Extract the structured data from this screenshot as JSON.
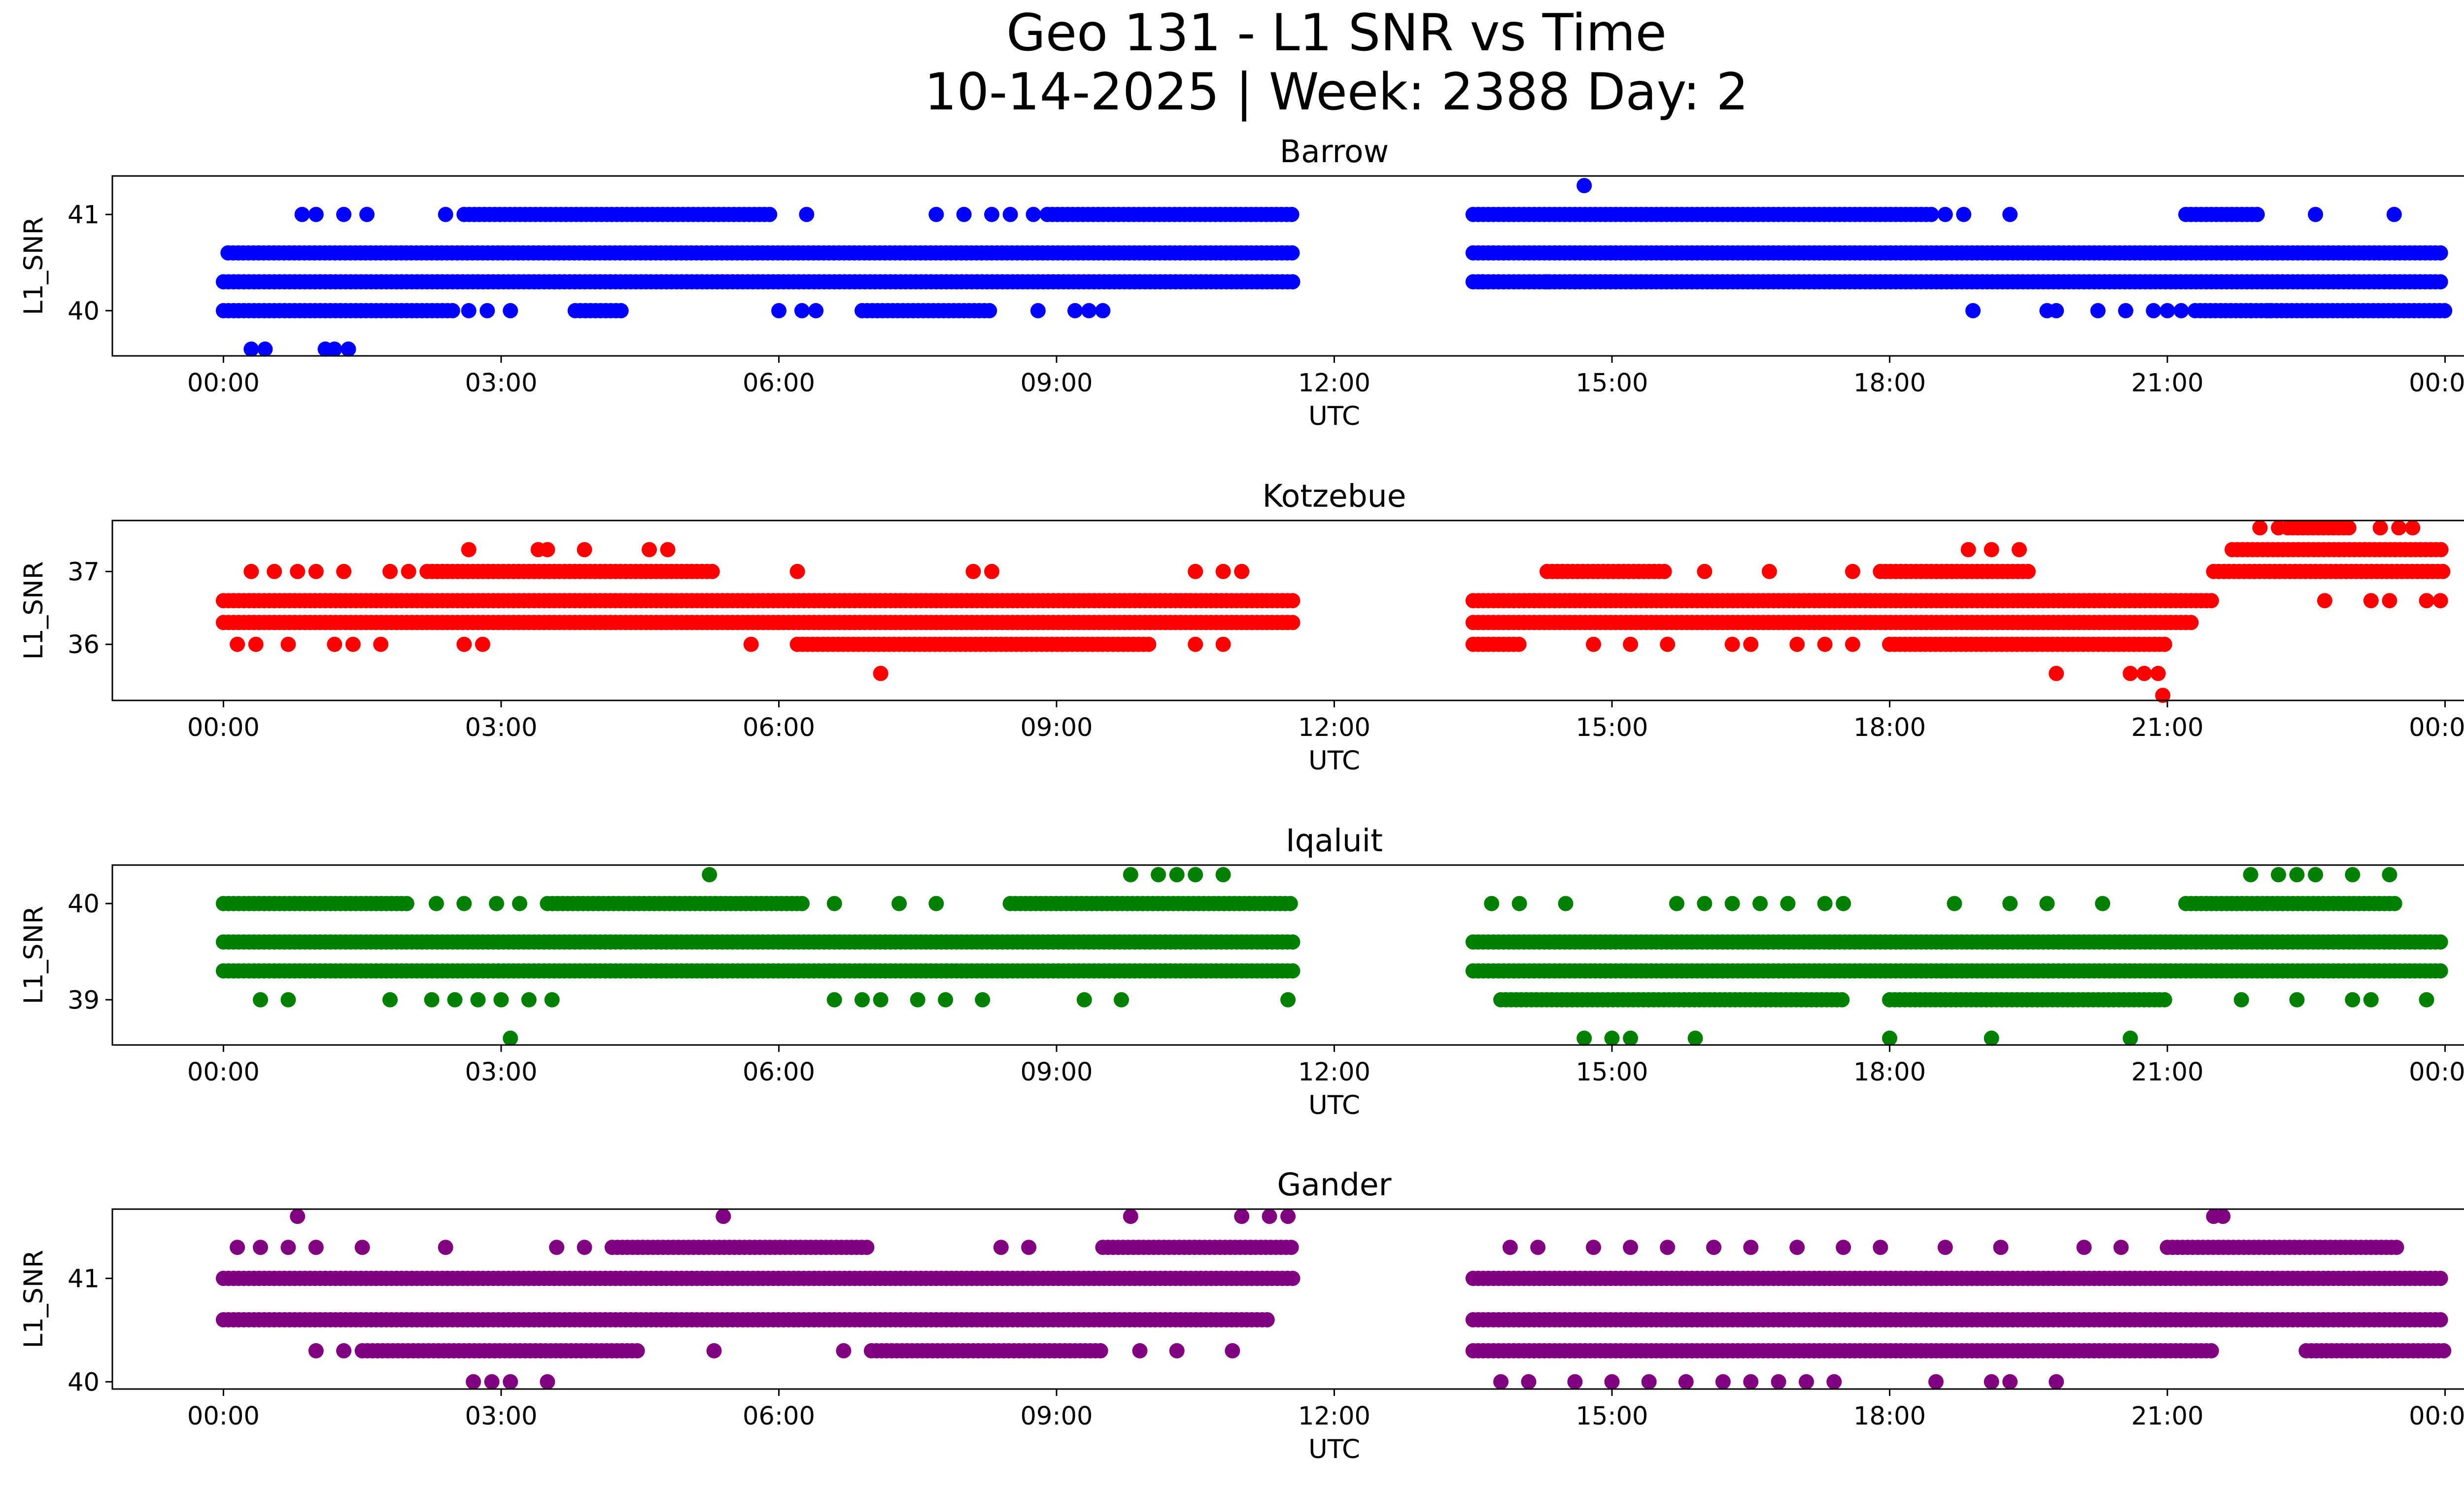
{
  "title_line1": "Geo 131 - L1 SNR vs Time",
  "title_line2": "10-14-2025 | Week: 2388 Day: 2",
  "chart_data": [
    {
      "type": "scatter",
      "title": "Barrow",
      "xlabel": "UTC",
      "ylabel": "L1_SNR",
      "color": "#0000ff",
      "x_ticks": [
        "00:00",
        "03:00",
        "06:00",
        "09:00",
        "12:00",
        "15:00",
        "18:00",
        "21:00",
        "00:00"
      ],
      "xlim_hours": [
        -1.2,
        25.2
      ],
      "y_ticks": [
        "40",
        "41"
      ],
      "y_tick_values": [
        40,
        41
      ],
      "ylim": [
        39.53,
        41.4
      ],
      "coverage_hours": [
        [
          0.0,
          11.55
        ],
        [
          13.5,
          24.0
        ]
      ],
      "dense_levels": [
        {
          "y": 40.6,
          "spans": [
            [
              0.05,
              11.55
            ],
            [
              13.5,
              24.0
            ]
          ]
        },
        {
          "y": 40.3,
          "spans": [
            [
              0.0,
              11.55
            ],
            [
              13.5,
              24.0
            ]
          ]
        },
        {
          "y": 40.0,
          "spans": [
            [
              0.0,
              2.5
            ],
            [
              3.8,
              4.3
            ],
            [
              6.9,
              8.3
            ],
            [
              21.3,
              24.0
            ]
          ]
        },
        {
          "y": 41.0,
          "spans": [
            [
              2.6,
              5.9
            ],
            [
              8.9,
              11.55
            ],
            [
              13.5,
              18.5
            ],
            [
              21.2,
              22.0
            ]
          ]
        }
      ],
      "sparse_points": [
        [
          0.3,
          39.6
        ],
        [
          0.45,
          39.6
        ],
        [
          1.1,
          39.6
        ],
        [
          1.2,
          39.6
        ],
        [
          1.35,
          39.6
        ],
        [
          0.85,
          41.0
        ],
        [
          1.0,
          41.0
        ],
        [
          1.3,
          41.0
        ],
        [
          1.55,
          41.0
        ],
        [
          2.4,
          41.0
        ],
        [
          6.3,
          41.0
        ],
        [
          7.7,
          41.0
        ],
        [
          8.0,
          41.0
        ],
        [
          8.3,
          41.0
        ],
        [
          8.5,
          41.0
        ],
        [
          8.75,
          41.0
        ],
        [
          2.65,
          40.0
        ],
        [
          2.85,
          40.0
        ],
        [
          3.1,
          40.0
        ],
        [
          6.0,
          40.0
        ],
        [
          6.25,
          40.0
        ],
        [
          6.4,
          40.0
        ],
        [
          8.8,
          40.0
        ],
        [
          9.2,
          40.0
        ],
        [
          9.35,
          40.0
        ],
        [
          9.5,
          40.0
        ],
        [
          14.7,
          41.3
        ],
        [
          18.6,
          41.0
        ],
        [
          18.8,
          41.0
        ],
        [
          19.3,
          41.0
        ],
        [
          22.6,
          41.0
        ],
        [
          23.45,
          41.0
        ],
        [
          18.9,
          40.0
        ],
        [
          19.7,
          40.0
        ],
        [
          19.8,
          40.0
        ],
        [
          20.25,
          40.0
        ],
        [
          20.55,
          40.0
        ],
        [
          20.85,
          40.0
        ],
        [
          21.0,
          40.0
        ],
        [
          21.15,
          40.0
        ],
        [
          21.9,
          40.0
        ],
        [
          22.1,
          40.0
        ],
        [
          13.6,
          40.3
        ],
        [
          14.3,
          40.3
        ],
        [
          14.6,
          40.3
        ]
      ]
    },
    {
      "type": "scatter",
      "title": "Kotzebue",
      "xlabel": "UTC",
      "ylabel": "L1_SNR",
      "color": "#ff0000",
      "x_ticks": [
        "00:00",
        "03:00",
        "06:00",
        "09:00",
        "12:00",
        "15:00",
        "18:00",
        "21:00",
        "00:00"
      ],
      "xlim_hours": [
        -1.2,
        25.2
      ],
      "y_ticks": [
        "36",
        "37"
      ],
      "y_tick_values": [
        36,
        37
      ],
      "ylim": [
        35.23,
        37.7
      ],
      "coverage_hours": [
        [
          0.0,
          11.55
        ],
        [
          13.5,
          24.0
        ]
      ],
      "dense_levels": [
        {
          "y": 36.6,
          "spans": [
            [
              0.0,
              11.55
            ],
            [
              13.5,
              21.5
            ]
          ]
        },
        {
          "y": 36.3,
          "spans": [
            [
              0.0,
              11.55
            ],
            [
              13.5,
              21.3
            ]
          ]
        },
        {
          "y": 36.0,
          "spans": [
            [
              6.2,
              10.0
            ],
            [
              13.5,
              14.0
            ],
            [
              18.0,
              21.0
            ]
          ]
        },
        {
          "y": 37.0,
          "spans": [
            [
              2.2,
              5.3
            ],
            [
              14.3,
              15.6
            ],
            [
              17.9,
              19.5
            ],
            [
              21.5,
              24.0
            ]
          ]
        },
        {
          "y": 37.3,
          "spans": [
            [
              21.7,
              24.0
            ]
          ]
        },
        {
          "y": 37.6,
          "spans": [
            [
              22.3,
              23.0
            ]
          ]
        }
      ],
      "sparse_points": [
        [
          0.3,
          37.0
        ],
        [
          0.55,
          37.0
        ],
        [
          0.8,
          37.0
        ],
        [
          1.0,
          37.0
        ],
        [
          1.3,
          37.0
        ],
        [
          1.8,
          37.0
        ],
        [
          2.0,
          37.0
        ],
        [
          0.15,
          36.0
        ],
        [
          0.35,
          36.0
        ],
        [
          0.7,
          36.0
        ],
        [
          1.2,
          36.0
        ],
        [
          1.4,
          36.0
        ],
        [
          1.7,
          36.0
        ],
        [
          2.6,
          36.0
        ],
        [
          2.8,
          36.0
        ],
        [
          5.7,
          36.0
        ],
        [
          2.65,
          37.3
        ],
        [
          3.4,
          37.3
        ],
        [
          3.5,
          37.3
        ],
        [
          3.9,
          37.3
        ],
        [
          4.6,
          37.3
        ],
        [
          4.8,
          37.3
        ],
        [
          6.2,
          37.0
        ],
        [
          8.1,
          37.0
        ],
        [
          8.3,
          37.0
        ],
        [
          10.5,
          37.0
        ],
        [
          10.8,
          37.0
        ],
        [
          11.0,
          37.0
        ],
        [
          7.1,
          35.6
        ],
        [
          10.5,
          36.0
        ],
        [
          10.8,
          36.0
        ],
        [
          14.8,
          36.0
        ],
        [
          15.2,
          36.0
        ],
        [
          15.6,
          36.0
        ],
        [
          16.3,
          36.0
        ],
        [
          16.5,
          36.0
        ],
        [
          17.0,
          36.0
        ],
        [
          17.3,
          36.0
        ],
        [
          17.6,
          36.0
        ],
        [
          16.0,
          37.0
        ],
        [
          16.7,
          37.0
        ],
        [
          17.6,
          37.0
        ],
        [
          18.85,
          37.3
        ],
        [
          19.1,
          37.3
        ],
        [
          19.4,
          37.3
        ],
        [
          19.8,
          35.6
        ],
        [
          20.6,
          35.6
        ],
        [
          20.75,
          35.6
        ],
        [
          20.9,
          35.6
        ],
        [
          20.95,
          35.3
        ],
        [
          22.7,
          36.6
        ],
        [
          23.2,
          36.6
        ],
        [
          23.4,
          36.6
        ],
        [
          23.8,
          36.6
        ],
        [
          23.95,
          36.6
        ],
        [
          23.3,
          37.6
        ],
        [
          23.5,
          37.6
        ],
        [
          23.65,
          37.6
        ],
        [
          22.0,
          37.6
        ],
        [
          22.2,
          37.6
        ]
      ]
    },
    {
      "type": "scatter",
      "title": "Iqaluit",
      "xlabel": "UTC",
      "ylabel": "L1_SNR",
      "color": "#008000",
      "x_ticks": [
        "00:00",
        "03:00",
        "06:00",
        "09:00",
        "12:00",
        "15:00",
        "18:00",
        "21:00",
        "00:00"
      ],
      "xlim_hours": [
        -1.2,
        25.2
      ],
      "y_ticks": [
        "39",
        "40"
      ],
      "y_tick_values": [
        39,
        40
      ],
      "ylim": [
        38.53,
        40.4
      ],
      "coverage_hours": [
        [
          0.0,
          11.55
        ],
        [
          13.5,
          24.0
        ]
      ],
      "dense_levels": [
        {
          "y": 39.6,
          "spans": [
            [
              0.0,
              11.55
            ],
            [
              13.5,
              24.0
            ]
          ]
        },
        {
          "y": 39.3,
          "spans": [
            [
              0.0,
              11.55
            ],
            [
              13.5,
              24.0
            ]
          ]
        },
        {
          "y": 40.0,
          "spans": [
            [
              0.0,
              2.0
            ],
            [
              3.5,
              6.3
            ],
            [
              8.5,
              11.55
            ],
            [
              21.2,
              23.5
            ]
          ]
        },
        {
          "y": 39.0,
          "spans": [
            [
              13.8,
              17.5
            ],
            [
              18.0,
              21.0
            ]
          ]
        }
      ],
      "sparse_points": [
        [
          0.4,
          39.0
        ],
        [
          0.7,
          39.0
        ],
        [
          1.8,
          39.0
        ],
        [
          2.25,
          39.0
        ],
        [
          2.5,
          39.0
        ],
        [
          2.75,
          39.0
        ],
        [
          3.0,
          39.0
        ],
        [
          3.3,
          39.0
        ],
        [
          3.55,
          39.0
        ],
        [
          2.3,
          40.0
        ],
        [
          2.6,
          40.0
        ],
        [
          2.95,
          40.0
        ],
        [
          3.2,
          40.0
        ],
        [
          6.6,
          40.0
        ],
        [
          7.3,
          40.0
        ],
        [
          7.7,
          40.0
        ],
        [
          3.1,
          38.6
        ],
        [
          5.25,
          40.3
        ],
        [
          9.8,
          40.3
        ],
        [
          10.1,
          40.3
        ],
        [
          10.3,
          40.3
        ],
        [
          10.5,
          40.3
        ],
        [
          10.8,
          40.3
        ],
        [
          6.6,
          39.0
        ],
        [
          6.9,
          39.0
        ],
        [
          7.1,
          39.0
        ],
        [
          7.5,
          39.0
        ],
        [
          7.8,
          39.0
        ],
        [
          8.2,
          39.0
        ],
        [
          9.3,
          39.0
        ],
        [
          9.7,
          39.0
        ],
        [
          11.5,
          39.0
        ],
        [
          13.7,
          40.0
        ],
        [
          14.0,
          40.0
        ],
        [
          14.5,
          40.0
        ],
        [
          15.7,
          40.0
        ],
        [
          16.0,
          40.0
        ],
        [
          16.3,
          40.0
        ],
        [
          16.6,
          40.0
        ],
        [
          16.9,
          40.0
        ],
        [
          17.3,
          40.0
        ],
        [
          17.5,
          40.0
        ],
        [
          18.7,
          40.0
        ],
        [
          19.3,
          40.0
        ],
        [
          19.7,
          40.0
        ],
        [
          20.3,
          40.0
        ],
        [
          14.7,
          38.6
        ],
        [
          15.0,
          38.6
        ],
        [
          15.2,
          38.6
        ],
        [
          15.9,
          38.6
        ],
        [
          18.0,
          38.6
        ],
        [
          19.1,
          38.6
        ],
        [
          20.6,
          38.6
        ],
        [
          21.8,
          39.0
        ],
        [
          22.4,
          39.0
        ],
        [
          23.0,
          39.0
        ],
        [
          23.2,
          39.0
        ],
        [
          23.8,
          39.0
        ],
        [
          21.9,
          40.3
        ],
        [
          22.2,
          40.3
        ],
        [
          22.4,
          40.3
        ],
        [
          22.6,
          40.3
        ],
        [
          23.0,
          40.3
        ],
        [
          23.4,
          40.3
        ]
      ]
    },
    {
      "type": "scatter",
      "title": "Gander",
      "xlabel": "UTC",
      "ylabel": "L1_SNR",
      "color": "#800080",
      "x_ticks": [
        "00:00",
        "03:00",
        "06:00",
        "09:00",
        "12:00",
        "15:00",
        "18:00",
        "21:00",
        "00:00"
      ],
      "xlim_hours": [
        -1.2,
        25.2
      ],
      "y_ticks": [
        "40",
        "41"
      ],
      "y_tick_values": [
        40,
        41
      ],
      "ylim": [
        39.93,
        41.67
      ],
      "coverage_hours": [
        [
          0.0,
          11.55
        ],
        [
          13.5,
          24.0
        ]
      ],
      "dense_levels": [
        {
          "y": 41.0,
          "spans": [
            [
              0.0,
              11.55
            ],
            [
              13.5,
              24.0
            ]
          ]
        },
        {
          "y": 40.6,
          "spans": [
            [
              0.0,
              11.3
            ],
            [
              13.5,
              24.0
            ]
          ]
        },
        {
          "y": 40.3,
          "spans": [
            [
              1.5,
              4.5
            ],
            [
              7.0,
              9.5
            ],
            [
              13.5,
              21.5
            ],
            [
              22.5,
              24.0
            ]
          ]
        },
        {
          "y": 41.3,
          "spans": [
            [
              4.2,
              7.0
            ],
            [
              9.5,
              11.55
            ],
            [
              21.0,
              23.5
            ]
          ]
        }
      ],
      "sparse_points": [
        [
          0.15,
          41.3
        ],
        [
          0.4,
          41.3
        ],
        [
          0.7,
          41.3
        ],
        [
          1.0,
          41.3
        ],
        [
          1.5,
          41.3
        ],
        [
          2.4,
          41.3
        ],
        [
          3.6,
          41.3
        ],
        [
          3.9,
          41.3
        ],
        [
          0.8,
          41.6
        ],
        [
          5.4,
          41.6
        ],
        [
          9.8,
          41.6
        ],
        [
          11.0,
          41.6
        ],
        [
          11.3,
          41.6
        ],
        [
          11.5,
          41.6
        ],
        [
          1.0,
          40.3
        ],
        [
          1.3,
          40.3
        ],
        [
          5.3,
          40.3
        ],
        [
          6.7,
          40.3
        ],
        [
          9.9,
          40.3
        ],
        [
          10.3,
          40.3
        ],
        [
          10.9,
          40.3
        ],
        [
          2.7,
          40.0
        ],
        [
          2.9,
          40.0
        ],
        [
          3.1,
          40.0
        ],
        [
          3.5,
          40.0
        ],
        [
          8.4,
          41.3
        ],
        [
          8.7,
          41.3
        ],
        [
          13.9,
          41.3
        ],
        [
          14.2,
          41.3
        ],
        [
          14.8,
          41.3
        ],
        [
          15.2,
          41.3
        ],
        [
          15.6,
          41.3
        ],
        [
          16.1,
          41.3
        ],
        [
          16.5,
          41.3
        ],
        [
          17.0,
          41.3
        ],
        [
          17.5,
          41.3
        ],
        [
          17.9,
          41.3
        ],
        [
          18.6,
          41.3
        ],
        [
          19.2,
          41.3
        ],
        [
          20.1,
          41.3
        ],
        [
          20.5,
          41.3
        ],
        [
          13.8,
          40.0
        ],
        [
          14.1,
          40.0
        ],
        [
          14.6,
          40.0
        ],
        [
          15.0,
          40.0
        ],
        [
          15.4,
          40.0
        ],
        [
          15.8,
          40.0
        ],
        [
          16.2,
          40.0
        ],
        [
          16.5,
          40.0
        ],
        [
          16.8,
          40.0
        ],
        [
          17.1,
          40.0
        ],
        [
          17.4,
          40.0
        ],
        [
          18.5,
          40.0
        ],
        [
          19.1,
          40.0
        ],
        [
          19.3,
          40.0
        ],
        [
          19.8,
          40.0
        ],
        [
          21.5,
          41.6
        ],
        [
          21.6,
          41.6
        ]
      ]
    }
  ]
}
